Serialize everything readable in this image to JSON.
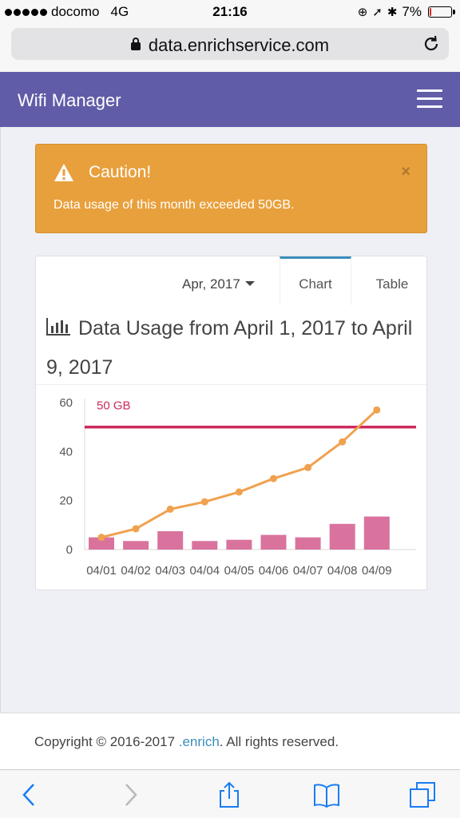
{
  "status_bar": {
    "carrier": "docomo",
    "network": "4G",
    "time": "21:16",
    "battery": "7%",
    "battery_level": 0.07
  },
  "browser": {
    "url": "data.enrichservice.com"
  },
  "navbar": {
    "title": "Wifi Manager"
  },
  "alert": {
    "title": "Caution!",
    "message": "Data usage of this month exceeded 50GB.",
    "close": "×"
  },
  "card": {
    "month": "Apr, 2017",
    "tabs": {
      "chart": "Chart",
      "table": "Table"
    },
    "active_tab": "chart",
    "title": "Data Usage from April 1, 2017 to April 9, 2017"
  },
  "chart_data": {
    "type": "bar",
    "categories": [
      "04/01",
      "04/02",
      "04/03",
      "04/04",
      "04/05",
      "04/06",
      "04/07",
      "04/08",
      "04/09"
    ],
    "series": [
      {
        "type": "bar",
        "values": [
          5,
          3.5,
          7.5,
          3.5,
          4,
          6,
          5,
          10.5,
          13.5
        ],
        "color": "#d9739e"
      },
      {
        "type": "line",
        "values": [
          5,
          8.5,
          16.5,
          19.5,
          23.5,
          29,
          33.5,
          44,
          57
        ],
        "color": "#f0a14e"
      }
    ],
    "threshold": {
      "value": 50,
      "label": "50 GB",
      "color": "#cc2a5b"
    },
    "yticks": [
      0,
      20,
      40,
      60
    ],
    "ylim": [
      0,
      60
    ]
  },
  "footer": {
    "prefix": "Copyright © 2016-2017 ",
    "link": ".enrich",
    "suffix": ". All rights reserved."
  },
  "toolbar": {
    "icons": [
      "back-icon",
      "forward-icon",
      "share-icon",
      "bookmarks-icon",
      "tabs-icon"
    ]
  }
}
